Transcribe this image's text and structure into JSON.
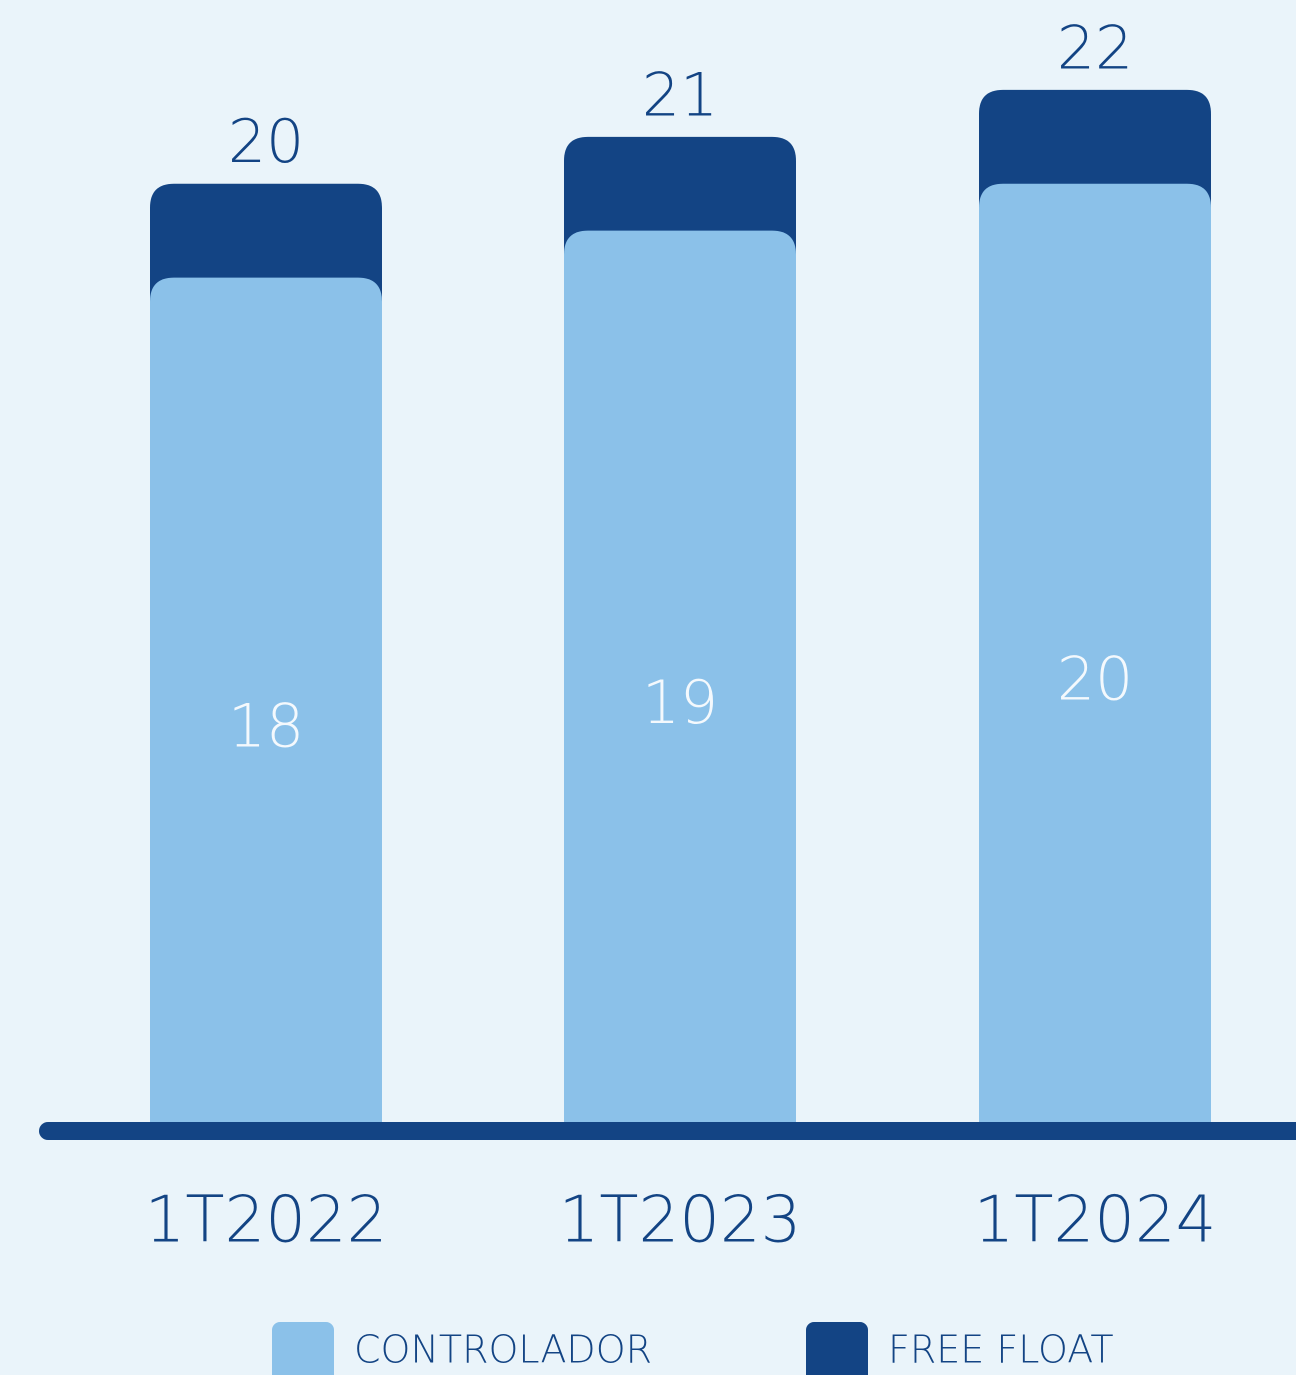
{
  "chart_data": {
    "type": "stacked_bar",
    "categories": [
      "1T2022",
      "1T2023",
      "1T2024"
    ],
    "series": [
      {
        "name": "CONTROLADOR",
        "color": "#8bc1e9",
        "values": [
          18,
          19,
          20
        ]
      },
      {
        "name": "FREE FLOAT",
        "color": "#134484",
        "values": [
          2,
          2,
          2
        ]
      }
    ],
    "totals": [
      20,
      21,
      22
    ],
    "ylim": [
      0,
      23
    ]
  }
}
